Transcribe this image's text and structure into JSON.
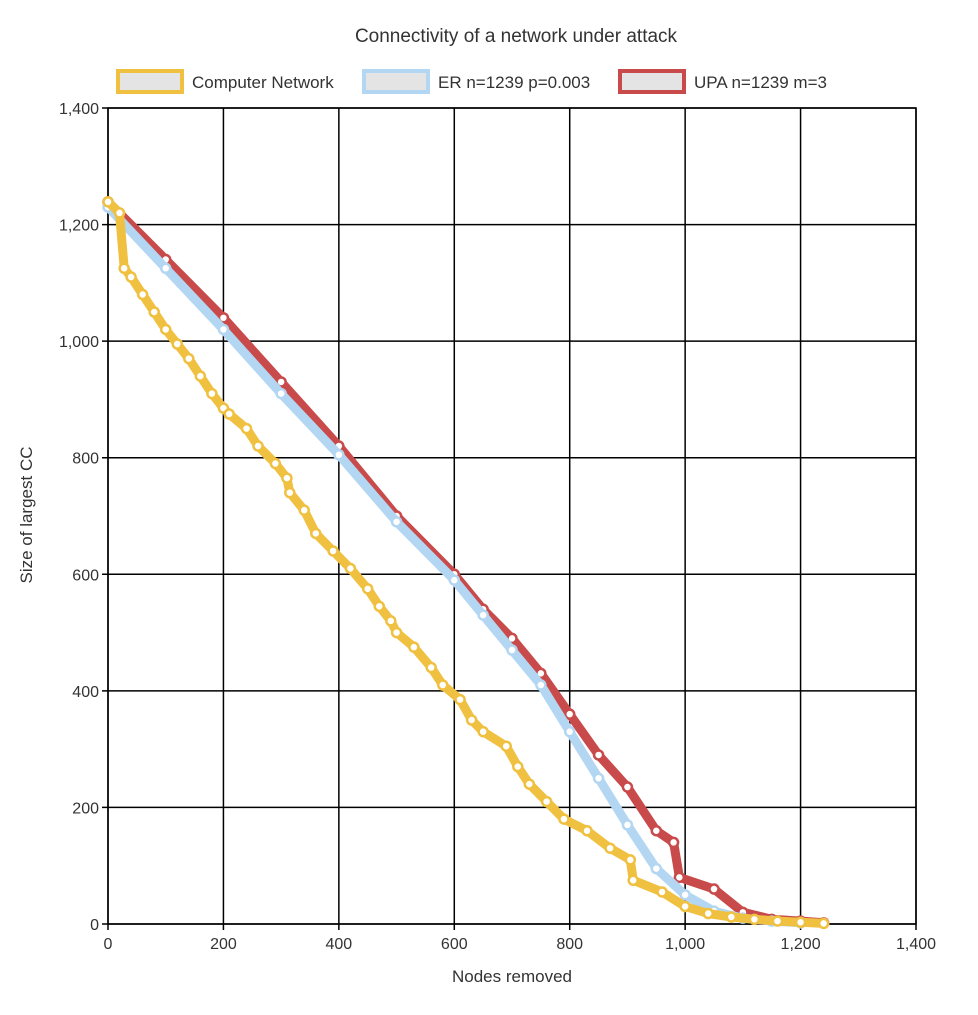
{
  "chart_data": {
    "type": "line",
    "title": "Connectivity of a network under attack",
    "xlabel": "Nodes removed",
    "ylabel": "Size of largest CC",
    "xlim": [
      0,
      1400
    ],
    "ylim": [
      0,
      1400
    ],
    "x_ticks": [
      "0",
      "200",
      "400",
      "600",
      "800",
      "1,000",
      "1,200",
      "1,400"
    ],
    "y_ticks": [
      "0",
      "200",
      "400",
      "600",
      "800",
      "1,000",
      "1,200",
      "1,400"
    ],
    "grid": true,
    "legend_position": "top",
    "series": [
      {
        "name": "Computer Network",
        "color": "#f0c040",
        "x": [
          0,
          20,
          28,
          40,
          60,
          80,
          100,
          120,
          140,
          160,
          180,
          200,
          210,
          240,
          260,
          290,
          310,
          315,
          340,
          360,
          390,
          420,
          450,
          470,
          490,
          500,
          530,
          560,
          580,
          610,
          630,
          650,
          690,
          710,
          730,
          760,
          790,
          830,
          870,
          905,
          910,
          960,
          1000,
          1040,
          1080,
          1120,
          1160,
          1200,
          1240
        ],
        "y": [
          1239,
          1220,
          1125,
          1110,
          1080,
          1050,
          1020,
          995,
          970,
          940,
          910,
          885,
          875,
          850,
          820,
          790,
          765,
          740,
          710,
          670,
          640,
          610,
          575,
          545,
          520,
          500,
          475,
          440,
          410,
          385,
          350,
          330,
          305,
          270,
          240,
          210,
          180,
          160,
          130,
          110,
          75,
          55,
          30,
          18,
          12,
          8,
          5,
          3,
          1
        ]
      },
      {
        "name": "ER n=1239 p=0.003",
        "color": "#b3d6f2",
        "x": [
          0,
          100,
          200,
          300,
          400,
          500,
          600,
          650,
          700,
          750,
          800,
          850,
          900,
          950,
          1000,
          1050,
          1100,
          1150,
          1200
        ],
        "y": [
          1230,
          1125,
          1020,
          910,
          805,
          690,
          590,
          530,
          470,
          410,
          330,
          250,
          170,
          95,
          50,
          22,
          10,
          5,
          2
        ]
      },
      {
        "name": "UPA n=1239 m=3",
        "color": "#c94a4a",
        "x": [
          0,
          100,
          200,
          300,
          400,
          500,
          600,
          650,
          700,
          750,
          800,
          850,
          900,
          950,
          980,
          990,
          1050,
          1100,
          1150,
          1200,
          1240
        ],
        "y": [
          1239,
          1140,
          1040,
          930,
          820,
          700,
          600,
          540,
          490,
          430,
          360,
          290,
          235,
          160,
          140,
          80,
          60,
          20,
          8,
          5,
          2
        ]
      }
    ]
  }
}
